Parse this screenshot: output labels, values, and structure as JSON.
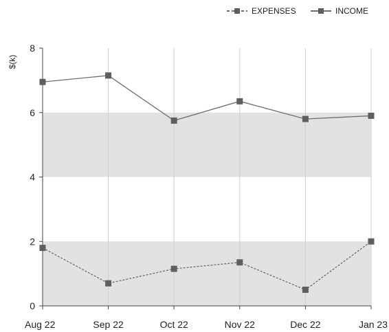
{
  "chart_data": {
    "type": "line",
    "ylabel": "$(k)",
    "xlabel": "",
    "ylim": [
      0,
      8
    ],
    "yticks": [
      0,
      2,
      4,
      6,
      8
    ],
    "categories": [
      "Aug 22",
      "Sep 22",
      "Oct 22",
      "Nov 22",
      "Dec 22",
      "Jan 23"
    ],
    "grid": {
      "vertical": true,
      "horizontal_bands": true
    },
    "bands": [
      [
        0,
        2
      ],
      [
        4,
        6
      ]
    ],
    "legend_position": "top-right",
    "series": [
      {
        "name": "EXPENSES",
        "style": "dashed",
        "color": "#6d6d6d",
        "values": [
          1.8,
          0.7,
          1.15,
          1.35,
          0.5,
          2.0
        ]
      },
      {
        "name": "INCOME",
        "style": "solid",
        "color": "#6d6d6d",
        "values": [
          6.95,
          7.15,
          5.75,
          6.35,
          5.8,
          5.9
        ]
      }
    ],
    "colors": {
      "band": "#e2e2e2",
      "gridline": "#cfcfcf",
      "axis": "#444444",
      "series": "#6d6d6d",
      "marker": "#5f5f5f"
    }
  }
}
